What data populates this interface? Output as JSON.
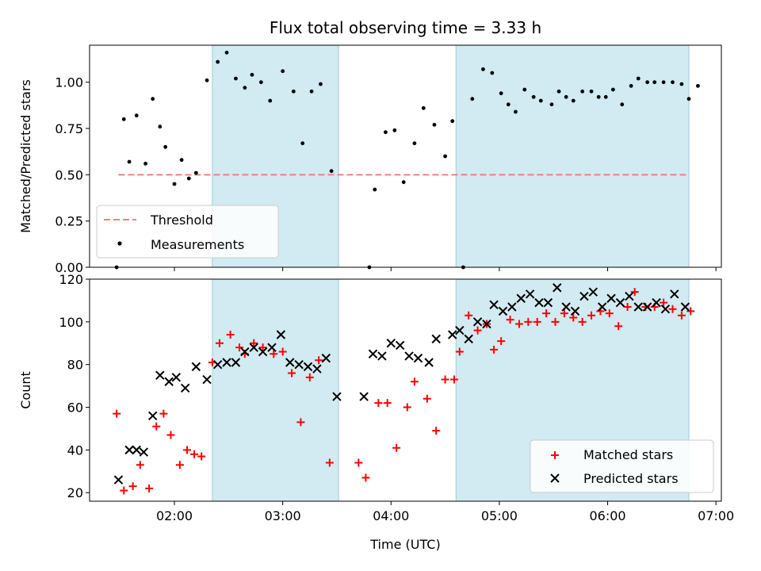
{
  "chart_data": [
    {
      "type": "scatter",
      "title": "Flux total observing time = 3.33 h",
      "ylabel": "Matched/Predicted stars",
      "xlim": [
        "01:13",
        "07:03"
      ],
      "ylim": [
        0,
        1.2
      ],
      "yticks": [
        "0.00",
        "0.25",
        "0.50",
        "0.75",
        "1.00"
      ],
      "shaded_intervals": [
        [
          "02:21",
          "03:31"
        ],
        [
          "04:36",
          "06:45"
        ]
      ],
      "threshold": {
        "name": "Threshold",
        "y": 0.5,
        "x_range": [
          "01:29",
          "06:45"
        ],
        "color": "#f08080"
      },
      "legend": {
        "position": "lower-left",
        "entries": [
          "Threshold",
          "Measurements"
        ]
      },
      "series": [
        {
          "name": "Measurements",
          "color": "#000000",
          "points": [
            [
              "01:28",
              0.0
            ],
            [
              "01:32",
              0.8
            ],
            [
              "01:35",
              0.57
            ],
            [
              "01:39",
              0.82
            ],
            [
              "01:44",
              0.56
            ],
            [
              "01:48",
              0.91
            ],
            [
              "01:52",
              0.76
            ],
            [
              "01:55",
              0.65
            ],
            [
              "02:00",
              0.45
            ],
            [
              "02:04",
              0.58
            ],
            [
              "02:08",
              0.48
            ],
            [
              "02:12",
              0.51
            ],
            [
              "02:18",
              1.01
            ],
            [
              "02:24",
              1.11
            ],
            [
              "02:29",
              1.16
            ],
            [
              "02:34",
              1.02
            ],
            [
              "02:39",
              0.97
            ],
            [
              "02:43",
              1.04
            ],
            [
              "02:48",
              1.0
            ],
            [
              "02:53",
              0.9
            ],
            [
              "03:00",
              1.06
            ],
            [
              "03:06",
              0.95
            ],
            [
              "03:11",
              0.67
            ],
            [
              "03:16",
              0.95
            ],
            [
              "03:21",
              0.99
            ],
            [
              "03:27",
              0.52
            ],
            [
              "03:48",
              0.0
            ],
            [
              "03:51",
              0.42
            ],
            [
              "03:57",
              0.73
            ],
            [
              "04:02",
              0.74
            ],
            [
              "04:07",
              0.46
            ],
            [
              "04:13",
              0.67
            ],
            [
              "04:18",
              0.86
            ],
            [
              "04:24",
              0.77
            ],
            [
              "04:30",
              0.6
            ],
            [
              "04:34",
              0.79
            ],
            [
              "04:40",
              0.0
            ],
            [
              "04:45",
              0.91
            ],
            [
              "04:51",
              1.07
            ],
            [
              "04:56",
              1.05
            ],
            [
              "05:01",
              0.94
            ],
            [
              "05:05",
              0.88
            ],
            [
              "05:09",
              0.84
            ],
            [
              "05:14",
              0.96
            ],
            [
              "05:19",
              0.92
            ],
            [
              "05:23",
              0.9
            ],
            [
              "05:29",
              0.88
            ],
            [
              "05:33",
              0.95
            ],
            [
              "05:37",
              0.92
            ],
            [
              "05:41",
              0.9
            ],
            [
              "05:46",
              0.95
            ],
            [
              "05:51",
              0.95
            ],
            [
              "05:55",
              0.92
            ],
            [
              "05:59",
              0.92
            ],
            [
              "06:03",
              0.96
            ],
            [
              "06:08",
              0.88
            ],
            [
              "06:13",
              0.98
            ],
            [
              "06:17",
              1.02
            ],
            [
              "06:22",
              1.0
            ],
            [
              "06:26",
              1.0
            ],
            [
              "06:31",
              1.0
            ],
            [
              "06:36",
              1.0
            ],
            [
              "06:41",
              0.99
            ],
            [
              "06:45",
              0.91
            ],
            [
              "06:50",
              0.98
            ]
          ]
        }
      ]
    },
    {
      "type": "scatter",
      "xlabel": "Time (UTC)",
      "ylabel": "Count",
      "xlim": [
        "01:13",
        "07:03"
      ],
      "ylim": [
        16,
        120
      ],
      "xticks": [
        "02:00",
        "03:00",
        "04:00",
        "05:00",
        "06:00",
        "07:00"
      ],
      "yticks": [
        20,
        40,
        60,
        80,
        100,
        120
      ],
      "shaded_intervals": [
        [
          "02:21",
          "03:31"
        ],
        [
          "04:36",
          "06:45"
        ]
      ],
      "legend": {
        "position": "lower-right",
        "entries": [
          "Matched stars",
          "Predicted stars"
        ]
      },
      "series": [
        {
          "name": "Matched stars",
          "marker": "+",
          "color": "#ff0000",
          "points": [
            [
              "01:28",
              57
            ],
            [
              "01:32",
              21
            ],
            [
              "01:37",
              23
            ],
            [
              "01:41",
              33
            ],
            [
              "01:46",
              22
            ],
            [
              "01:50",
              51
            ],
            [
              "01:54",
              57
            ],
            [
              "01:58",
              47
            ],
            [
              "02:03",
              33
            ],
            [
              "02:07",
              40
            ],
            [
              "02:11",
              38
            ],
            [
              "02:15",
              37
            ],
            [
              "02:21",
              81
            ],
            [
              "02:25",
              90
            ],
            [
              "02:31",
              94
            ],
            [
              "02:36",
              88
            ],
            [
              "02:39",
              85
            ],
            [
              "02:44",
              90
            ],
            [
              "02:49",
              88
            ],
            [
              "02:55",
              85
            ],
            [
              "03:00",
              86
            ],
            [
              "03:05",
              76
            ],
            [
              "03:10",
              53
            ],
            [
              "03:15",
              74
            ],
            [
              "03:20",
              82
            ],
            [
              "03:26",
              34
            ],
            [
              "03:42",
              34
            ],
            [
              "03:46",
              27
            ],
            [
              "03:53",
              62
            ],
            [
              "03:58",
              62
            ],
            [
              "04:03",
              41
            ],
            [
              "04:09",
              60
            ],
            [
              "04:13",
              72
            ],
            [
              "04:20",
              64
            ],
            [
              "04:25",
              49
            ],
            [
              "04:30",
              73
            ],
            [
              "04:35",
              73
            ],
            [
              "04:38",
              86
            ],
            [
              "04:43",
              103
            ],
            [
              "04:48",
              96
            ],
            [
              "04:53",
              99
            ],
            [
              "04:57",
              87
            ],
            [
              "05:01",
              91
            ],
            [
              "05:06",
              101
            ],
            [
              "05:11",
              99
            ],
            [
              "05:16",
              100
            ],
            [
              "05:21",
              100
            ],
            [
              "05:26",
              104
            ],
            [
              "05:31",
              100
            ],
            [
              "05:36",
              104
            ],
            [
              "05:41",
              102
            ],
            [
              "05:46",
              100
            ],
            [
              "05:51",
              103
            ],
            [
              "05:56",
              105
            ],
            [
              "06:01",
              104
            ],
            [
              "06:06",
              98
            ],
            [
              "06:11",
              107
            ],
            [
              "06:15",
              114
            ],
            [
              "06:21",
              107
            ],
            [
              "06:26",
              107
            ],
            [
              "06:31",
              109
            ],
            [
              "06:36",
              106
            ],
            [
              "06:41",
              103
            ],
            [
              "06:46",
              105
            ]
          ]
        },
        {
          "name": "Predicted stars",
          "marker": "x",
          "color": "#000000",
          "points": [
            [
              "01:29",
              26
            ],
            [
              "01:35",
              40
            ],
            [
              "01:39",
              40
            ],
            [
              "01:43",
              39
            ],
            [
              "01:48",
              56
            ],
            [
              "01:52",
              75
            ],
            [
              "01:57",
              72
            ],
            [
              "02:01",
              74
            ],
            [
              "02:06",
              69
            ],
            [
              "02:12",
              79
            ],
            [
              "02:18",
              73
            ],
            [
              "02:24",
              80
            ],
            [
              "02:29",
              81
            ],
            [
              "02:34",
              81
            ],
            [
              "02:39",
              86
            ],
            [
              "02:44",
              88
            ],
            [
              "02:49",
              86
            ],
            [
              "02:54",
              88
            ],
            [
              "02:59",
              94
            ],
            [
              "03:04",
              81
            ],
            [
              "03:09",
              80
            ],
            [
              "03:14",
              79
            ],
            [
              "03:19",
              78
            ],
            [
              "03:24",
              83
            ],
            [
              "03:30",
              65
            ],
            [
              "03:45",
              65
            ],
            [
              "03:50",
              85
            ],
            [
              "03:55",
              84
            ],
            [
              "04:00",
              90
            ],
            [
              "04:05",
              89
            ],
            [
              "04:10",
              84
            ],
            [
              "04:15",
              83
            ],
            [
              "04:21",
              81
            ],
            [
              "04:25",
              92
            ],
            [
              "04:34",
              94
            ],
            [
              "04:38",
              96
            ],
            [
              "04:43",
              92
            ],
            [
              "04:48",
              100
            ],
            [
              "04:53",
              99
            ],
            [
              "04:57",
              108
            ],
            [
              "05:02",
              105
            ],
            [
              "05:07",
              107
            ],
            [
              "05:12",
              111
            ],
            [
              "05:17",
              113
            ],
            [
              "05:22",
              109
            ],
            [
              "05:27",
              109
            ],
            [
              "05:32",
              116
            ],
            [
              "05:37",
              107
            ],
            [
              "05:42",
              105
            ],
            [
              "05:47",
              112
            ],
            [
              "05:52",
              114
            ],
            [
              "05:57",
              107
            ],
            [
              "06:02",
              111
            ],
            [
              "06:07",
              109
            ],
            [
              "06:12",
              112
            ],
            [
              "06:17",
              107
            ],
            [
              "06:22",
              107
            ],
            [
              "06:27",
              109
            ],
            [
              "06:32",
              106
            ],
            [
              "06:37",
              113
            ],
            [
              "06:43",
              107
            ]
          ]
        }
      ]
    }
  ]
}
